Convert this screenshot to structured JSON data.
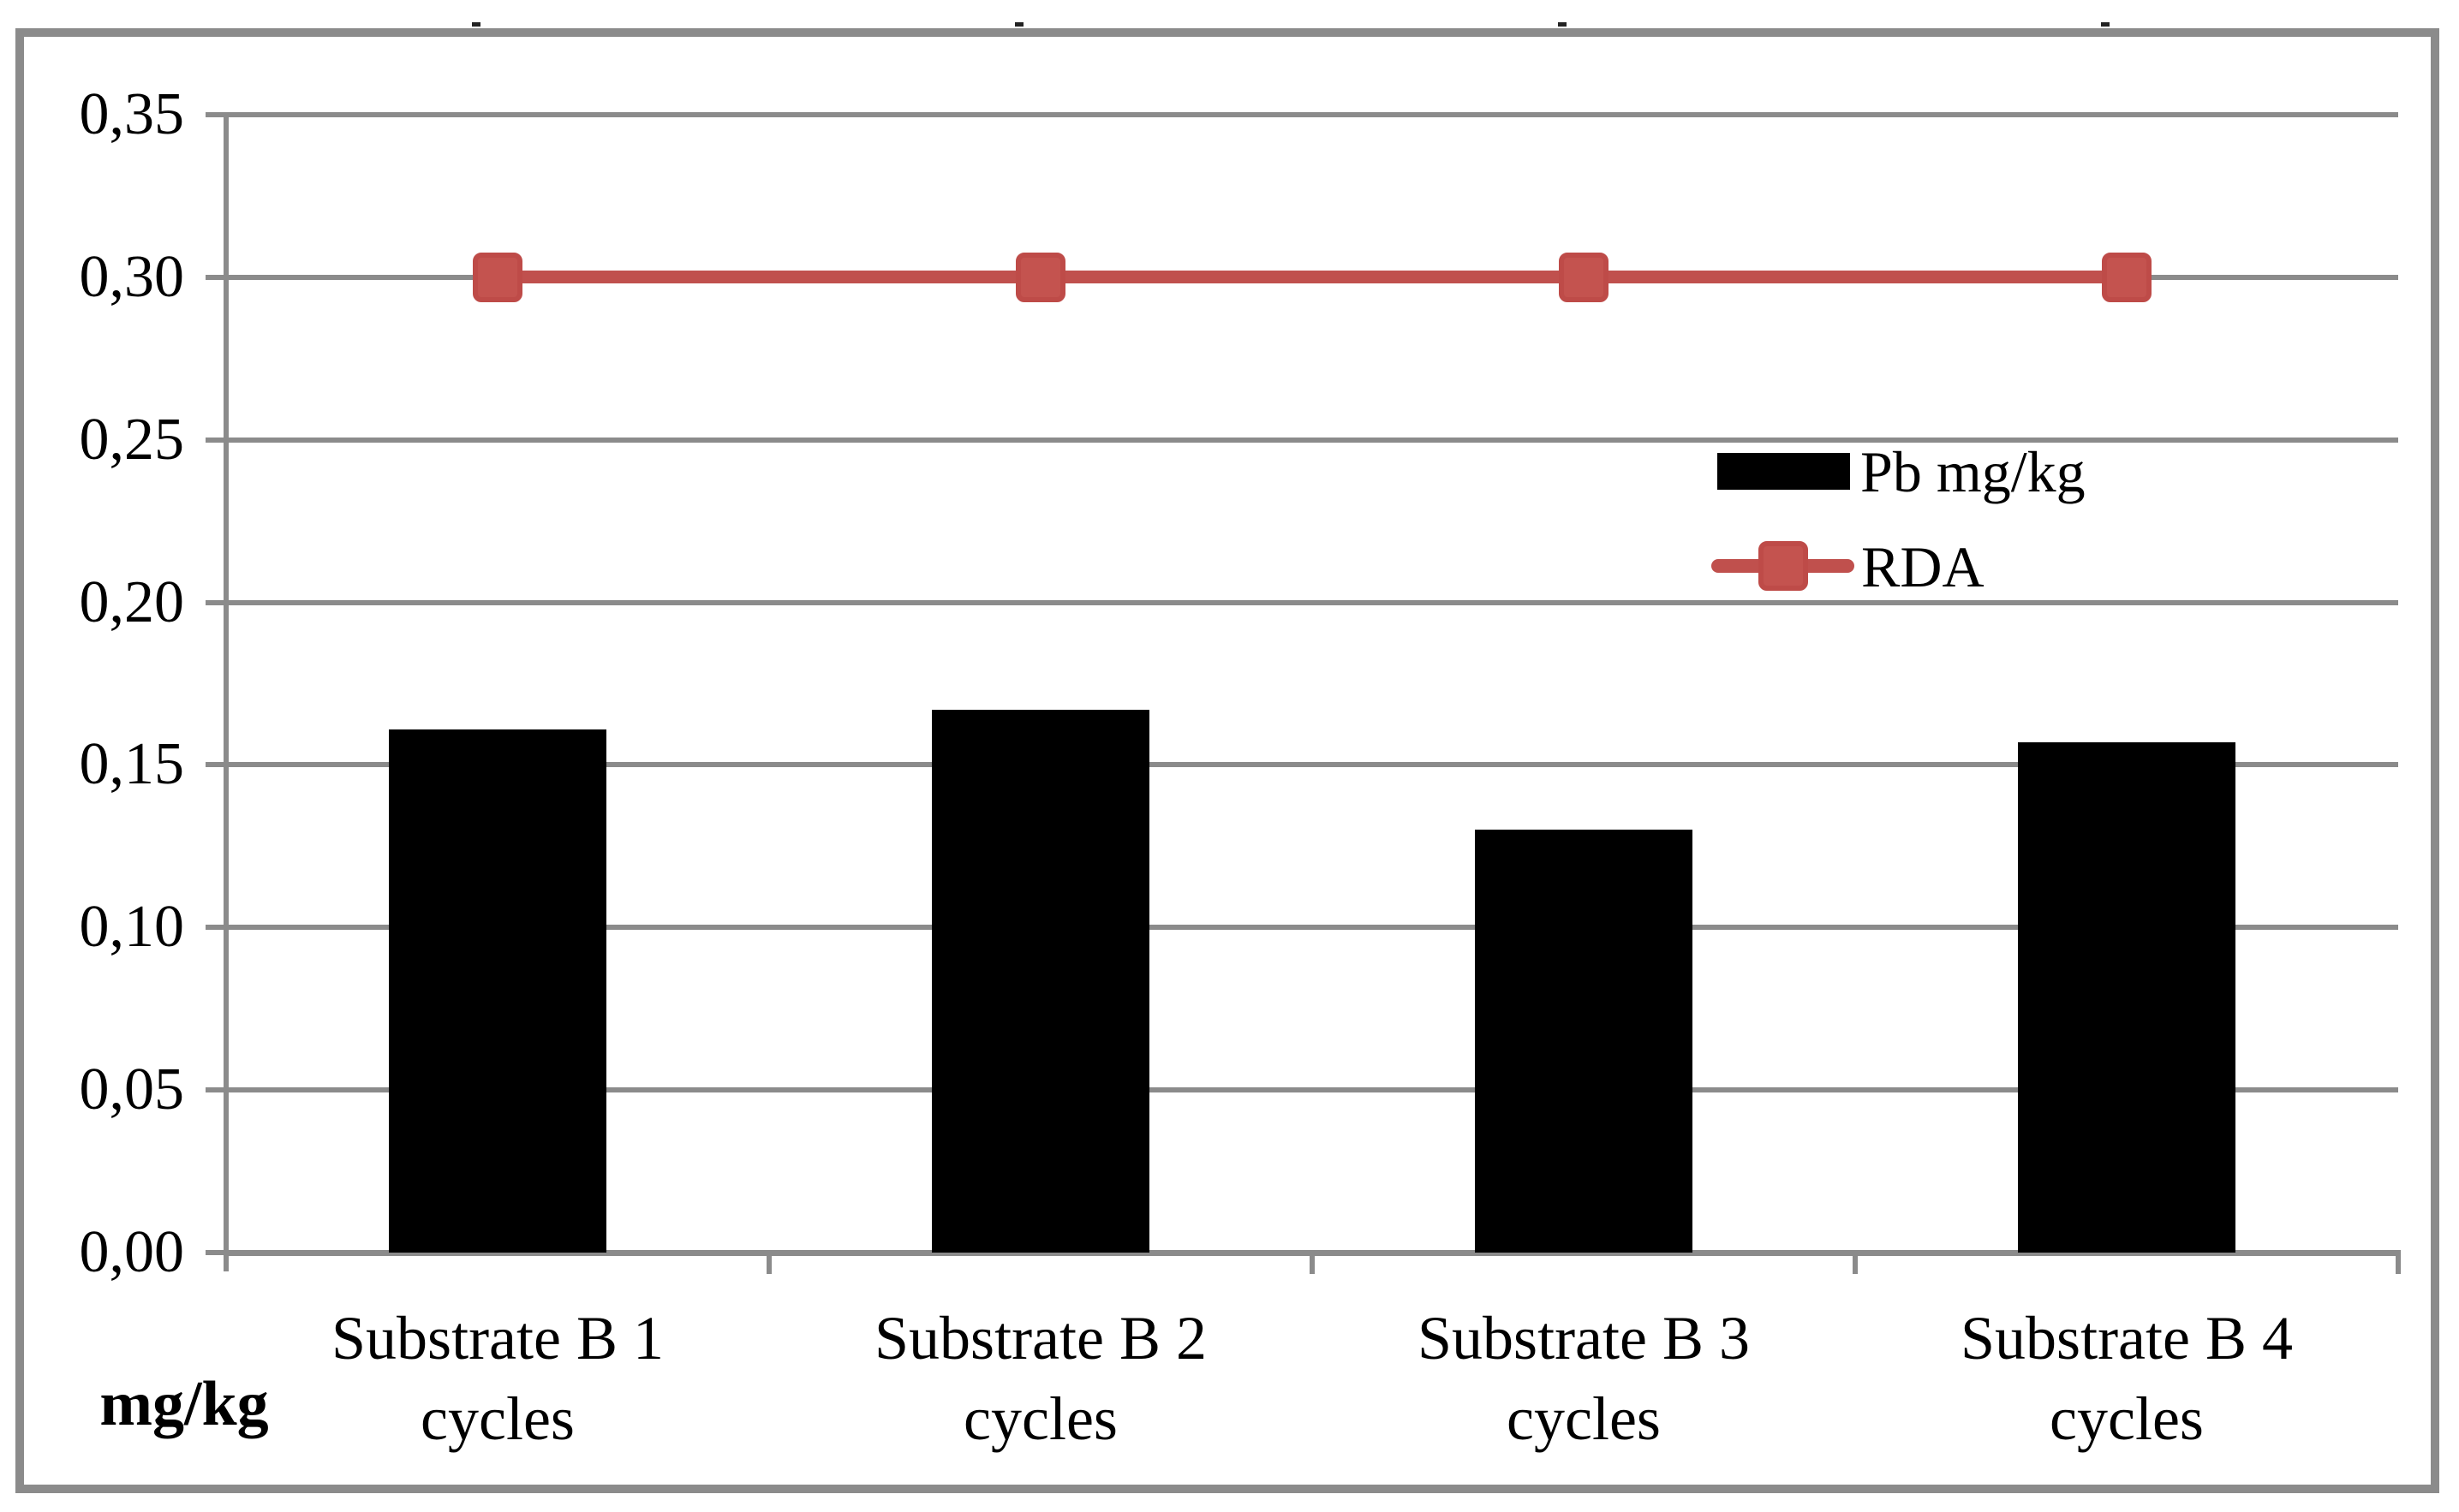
{
  "chart_data": {
    "type": "bar",
    "title": "",
    "categories": [
      {
        "line1": "Substrate B 1",
        "line2": "cycles"
      },
      {
        "line1": "Substrate B 2",
        "line2": "cycles"
      },
      {
        "line1": "Substrate B 3",
        "line2": "cycles"
      },
      {
        "line1": "Substrate B 4",
        "line2": "cycles"
      }
    ],
    "series": [
      {
        "name": "Pb mg/kg",
        "type": "bar",
        "color": "#000000",
        "values": [
          0.161,
          0.167,
          0.13,
          0.157
        ]
      },
      {
        "name": "RDA",
        "type": "line",
        "color": "#C0504D",
        "values": [
          0.3,
          0.3,
          0.3,
          0.3
        ]
      }
    ],
    "ylim": [
      0,
      0.35
    ],
    "ytick_step": 0.05,
    "ytick_labels": [
      "0,00",
      "0,05",
      "0,10",
      "0,15",
      "0,20",
      "0,25",
      "0,30",
      "0,35"
    ],
    "decimal_separator": ",",
    "grid": true,
    "axis_unit_label": "mg/kg",
    "legend_position": "middle-right"
  },
  "legend": {
    "items": [
      {
        "label": "Pb mg/kg",
        "swatch": "black-bar"
      },
      {
        "label": "RDA",
        "swatch": "red-line-square"
      }
    ]
  },
  "colors": {
    "bar": "#000000",
    "rda_line": "#C0504D",
    "rda_marker_fill": "#C4534F",
    "rda_marker_border": "#BE4B48",
    "grid": "#8B8B8B",
    "text": "#000000",
    "background": "#FFFFFF"
  }
}
